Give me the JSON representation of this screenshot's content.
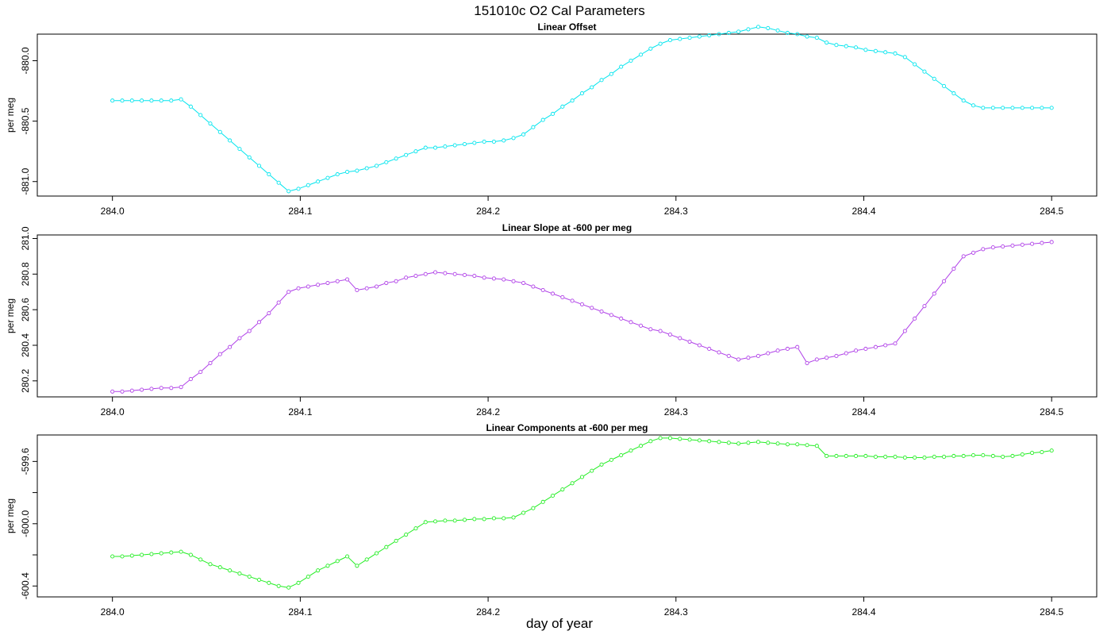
{
  "figure": {
    "title": "151010c   O2 Cal Parameters",
    "xlabel": "day of year"
  },
  "chart_data": [
    {
      "type": "line",
      "title": "Linear Offset",
      "xlabel": "",
      "ylabel": "per meg",
      "xlim": [
        283.96,
        284.524
      ],
      "ylim": [
        -881.12,
        -879.78
      ],
      "xticks": [
        284.0,
        284.1,
        284.2,
        284.3,
        284.4,
        284.5
      ],
      "xtick_labels": [
        "284.0",
        "284.1",
        "284.2",
        "284.3",
        "284.4",
        "284.5"
      ],
      "yticks": [
        -881.0,
        -880.5,
        -880.0
      ],
      "ytick_labels": [
        "-881.0",
        "-880.5",
        "-880.0"
      ],
      "color": "#00e5ee",
      "series": [
        {
          "x": [
            284.0,
            284.0052,
            284.0104,
            284.0156,
            284.0208,
            284.026,
            284.0313,
            284.0365,
            284.0417,
            284.0469,
            284.0521,
            284.0573,
            284.0625,
            284.0677,
            284.0729,
            284.0781,
            284.0833,
            284.0885,
            284.0938,
            284.099,
            284.1042,
            284.1094,
            284.1146,
            284.1198,
            284.125,
            284.1302,
            284.1354,
            284.1406,
            284.1458,
            284.151,
            284.1563,
            284.1615,
            284.1667,
            284.1719,
            284.1771,
            284.1823,
            284.1875,
            284.1927,
            284.1979,
            284.2031,
            284.2083,
            284.2135,
            284.2188,
            284.224,
            284.2292,
            284.2344,
            284.2396,
            284.2448,
            284.25,
            284.2552,
            284.2604,
            284.2656,
            284.2708,
            284.276,
            284.2813,
            284.2865,
            284.2917,
            284.2969,
            284.3021,
            284.3073,
            284.3125,
            284.3177,
            284.3229,
            284.3281,
            284.3333,
            284.3385,
            284.3438,
            284.349,
            284.3542,
            284.3594,
            284.3646,
            284.3698,
            284.375,
            284.3802,
            284.3854,
            284.3906,
            284.3958,
            284.401,
            284.4063,
            284.4115,
            284.4167,
            284.4219,
            284.4271,
            284.4323,
            284.4375,
            284.4427,
            284.4479,
            284.4531,
            284.4583,
            284.4635,
            284.4688,
            284.474,
            284.4792,
            284.4844,
            284.4896,
            284.4948,
            284.5
          ],
          "y": [
            -880.33,
            -880.33,
            -880.33,
            -880.33,
            -880.33,
            -880.33,
            -880.33,
            -880.32,
            -880.38,
            -880.45,
            -880.52,
            -880.59,
            -880.66,
            -880.73,
            -880.8,
            -880.87,
            -880.94,
            -881.01,
            -881.08,
            -881.06,
            -881.03,
            -881.0,
            -880.97,
            -880.94,
            -880.92,
            -880.91,
            -880.89,
            -880.87,
            -880.84,
            -880.81,
            -880.78,
            -880.75,
            -880.72,
            -880.72,
            -880.71,
            -880.7,
            -880.69,
            -880.68,
            -880.67,
            -880.67,
            -880.66,
            -880.64,
            -880.61,
            -880.55,
            -880.49,
            -880.44,
            -880.38,
            -880.33,
            -880.27,
            -880.22,
            -880.16,
            -880.11,
            -880.05,
            -880.0,
            -879.95,
            -879.9,
            -879.86,
            -879.83,
            -879.82,
            -879.81,
            -879.8,
            -879.79,
            -879.78,
            -879.77,
            -879.76,
            -879.74,
            -879.72,
            -879.73,
            -879.75,
            -879.77,
            -879.78,
            -879.8,
            -879.81,
            -879.85,
            -879.87,
            -879.88,
            -879.89,
            -879.91,
            -879.92,
            -879.93,
            -879.94,
            -879.97,
            -880.03,
            -880.09,
            -880.15,
            -880.21,
            -880.27,
            -880.33,
            -880.37,
            -880.39,
            -880.39,
            -880.39,
            -880.39,
            -880.39,
            -880.39,
            -880.39,
            -880.39
          ]
        }
      ]
    },
    {
      "type": "line",
      "title": "Linear Slope at -600 per meg",
      "xlabel": "",
      "ylabel": "per meg",
      "xlim": [
        283.96,
        284.524
      ],
      "ylim": [
        280.11,
        281.02
      ],
      "xticks": [
        284.0,
        284.1,
        284.2,
        284.3,
        284.4,
        284.5
      ],
      "xtick_labels": [
        "284.0",
        "284.1",
        "284.2",
        "284.3",
        "284.4",
        "284.5"
      ],
      "yticks": [
        280.2,
        280.4,
        280.6,
        280.8,
        281.0
      ],
      "ytick_labels": [
        "280.2",
        "280.4",
        "280.6",
        "280.8",
        "281.0"
      ],
      "color": "#b040e8",
      "series": [
        {
          "x": [
            284.0,
            284.0052,
            284.0104,
            284.0156,
            284.0208,
            284.026,
            284.0313,
            284.0365,
            284.0417,
            284.0469,
            284.0521,
            284.0573,
            284.0625,
            284.0677,
            284.0729,
            284.0781,
            284.0833,
            284.0885,
            284.0938,
            284.099,
            284.1042,
            284.1094,
            284.1146,
            284.1198,
            284.125,
            284.1302,
            284.1354,
            284.1406,
            284.1458,
            284.151,
            284.1563,
            284.1615,
            284.1667,
            284.1719,
            284.1771,
            284.1823,
            284.1875,
            284.1927,
            284.1979,
            284.2031,
            284.2083,
            284.2135,
            284.2188,
            284.224,
            284.2292,
            284.2344,
            284.2396,
            284.2448,
            284.25,
            284.2552,
            284.2604,
            284.2656,
            284.2708,
            284.276,
            284.2813,
            284.2865,
            284.2917,
            284.2969,
            284.3021,
            284.3073,
            284.3125,
            284.3177,
            284.3229,
            284.3281,
            284.3333,
            284.3385,
            284.3438,
            284.349,
            284.3542,
            284.3594,
            284.3646,
            284.3698,
            284.375,
            284.3802,
            284.3854,
            284.3906,
            284.3958,
            284.401,
            284.4063,
            284.4115,
            284.4167,
            284.4219,
            284.4271,
            284.4323,
            284.4375,
            284.4427,
            284.4479,
            284.4531,
            284.4583,
            284.4635,
            284.4688,
            284.474,
            284.4792,
            284.4844,
            284.4896,
            284.4948,
            284.5
          ],
          "y": [
            280.14,
            280.14,
            280.145,
            280.15,
            280.155,
            280.16,
            280.16,
            280.165,
            280.21,
            280.25,
            280.3,
            280.35,
            280.39,
            280.44,
            280.48,
            280.53,
            280.58,
            280.64,
            280.7,
            280.72,
            280.73,
            280.74,
            280.75,
            280.76,
            280.77,
            280.71,
            280.72,
            280.73,
            280.75,
            280.76,
            280.78,
            280.79,
            280.8,
            280.81,
            280.805,
            280.8,
            280.795,
            280.79,
            280.78,
            280.775,
            280.77,
            280.76,
            280.75,
            280.73,
            280.71,
            280.69,
            280.67,
            280.65,
            280.63,
            280.61,
            280.59,
            280.57,
            280.55,
            280.53,
            280.51,
            280.49,
            280.48,
            280.46,
            280.44,
            280.42,
            280.4,
            280.38,
            280.36,
            280.34,
            280.32,
            280.33,
            280.34,
            280.355,
            280.37,
            280.38,
            280.39,
            280.3,
            280.32,
            280.33,
            280.34,
            280.355,
            280.37,
            280.38,
            280.39,
            280.4,
            280.41,
            280.48,
            280.55,
            280.62,
            280.69,
            280.76,
            280.83,
            280.9,
            280.92,
            280.94,
            280.95,
            280.955,
            280.96,
            280.965,
            280.97,
            280.975,
            280.98
          ]
        }
      ]
    },
    {
      "type": "line",
      "title": "Linear Components at -600 per meg",
      "xlabel": "",
      "ylabel": "per meg",
      "xlim": [
        283.96,
        284.524
      ],
      "ylim": [
        -600.47,
        -599.43
      ],
      "xticks": [
        284.0,
        284.1,
        284.2,
        284.3,
        284.4,
        284.5
      ],
      "xtick_labels": [
        "284.0",
        "284.1",
        "284.2",
        "284.3",
        "284.4",
        "284.5"
      ],
      "yticks": [
        -600.4,
        -600.2,
        -600.0,
        -599.8,
        -599.6
      ],
      "ytick_labels": [
        "-600.4",
        "",
        "-600.0",
        "",
        "-599.6"
      ],
      "color": "#22ee22",
      "series": [
        {
          "x": [
            284.0,
            284.0052,
            284.0104,
            284.0156,
            284.0208,
            284.026,
            284.0313,
            284.0365,
            284.0417,
            284.0469,
            284.0521,
            284.0573,
            284.0625,
            284.0677,
            284.0729,
            284.0781,
            284.0833,
            284.0885,
            284.0938,
            284.099,
            284.1042,
            284.1094,
            284.1146,
            284.1198,
            284.125,
            284.1302,
            284.1354,
            284.1406,
            284.1458,
            284.151,
            284.1563,
            284.1615,
            284.1667,
            284.1719,
            284.1771,
            284.1823,
            284.1875,
            284.1927,
            284.1979,
            284.2031,
            284.2083,
            284.2135,
            284.2188,
            284.224,
            284.2292,
            284.2344,
            284.2396,
            284.2448,
            284.25,
            284.2552,
            284.2604,
            284.2656,
            284.2708,
            284.276,
            284.2813,
            284.2865,
            284.2917,
            284.2969,
            284.3021,
            284.3073,
            284.3125,
            284.3177,
            284.3229,
            284.3281,
            284.3333,
            284.3385,
            284.3438,
            284.349,
            284.3542,
            284.3594,
            284.3646,
            284.3698,
            284.375,
            284.3802,
            284.3854,
            284.3906,
            284.3958,
            284.401,
            284.4063,
            284.4115,
            284.4167,
            284.4219,
            284.4271,
            284.4323,
            284.4375,
            284.4427,
            284.4479,
            284.4531,
            284.4583,
            284.4635,
            284.4688,
            284.474,
            284.4792,
            284.4844,
            284.4896,
            284.4948,
            284.5
          ],
          "y": [
            -600.21,
            -600.21,
            -600.205,
            -600.2,
            -600.195,
            -600.19,
            -600.185,
            -600.18,
            -600.2,
            -600.23,
            -600.26,
            -600.28,
            -600.3,
            -600.32,
            -600.34,
            -600.36,
            -600.38,
            -600.4,
            -600.41,
            -600.38,
            -600.34,
            -600.3,
            -600.27,
            -600.24,
            -600.21,
            -600.27,
            -600.23,
            -600.19,
            -600.15,
            -600.11,
            -600.07,
            -600.03,
            -599.99,
            -599.985,
            -599.98,
            -599.98,
            -599.975,
            -599.97,
            -599.97,
            -599.965,
            -599.965,
            -599.96,
            -599.93,
            -599.9,
            -599.86,
            -599.82,
            -599.78,
            -599.74,
            -599.7,
            -599.66,
            -599.62,
            -599.59,
            -599.56,
            -599.53,
            -599.5,
            -599.47,
            -599.45,
            -599.45,
            -599.455,
            -599.46,
            -599.465,
            -599.47,
            -599.475,
            -599.48,
            -599.485,
            -599.48,
            -599.475,
            -599.48,
            -599.485,
            -599.49,
            -599.49,
            -599.495,
            -599.5,
            -599.565,
            -599.565,
            -599.565,
            -599.565,
            -599.565,
            -599.57,
            -599.57,
            -599.57,
            -599.575,
            -599.575,
            -599.575,
            -599.57,
            -599.57,
            -599.565,
            -599.565,
            -599.56,
            -599.56,
            -599.565,
            -599.57,
            -599.565,
            -599.555,
            -599.545,
            -599.54,
            -599.53
          ]
        }
      ]
    }
  ]
}
